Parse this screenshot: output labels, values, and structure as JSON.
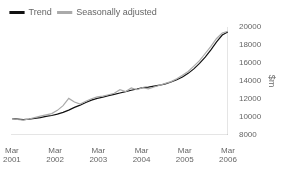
{
  "chart_data": {
    "type": "line",
    "ylabel": "$m",
    "x": [
      0,
      0.5263157894736842,
      1.0526315789473684,
      1.5789473684210527,
      2.1052631578947367,
      2.631578947368421,
      3.1578947368421053,
      3.6842105263157894,
      4.2105263157894735,
      4.7368421052631575,
      5.263157894736842,
      5.789473684210526,
      6.315789473684211,
      6.842105263157895,
      7.368421052631579,
      7.894736842105263,
      8.421052631578947,
      8.947368421052632,
      9.473684210526315,
      10,
      10.526315789473685,
      11.052631578947368,
      11.578947368421053,
      12.105263157894736,
      12.631578947368421,
      13.157894736842104,
      13.68421052631579,
      14.210526315789474,
      14.736842105263158,
      15.263157894736842,
      15.789473684210526,
      16.31578947368421,
      16.842105263157894,
      17.36842105263158,
      17.894736842105264,
      18.42105263157895,
      18.94736842105263,
      19.473684210526315,
      20
    ],
    "xlim": [
      0,
      20
    ],
    "xticks": [
      {
        "value": 0,
        "label": "Mar\n2001"
      },
      {
        "value": 4,
        "label": "Mar\n2002"
      },
      {
        "value": 8,
        "label": "Mar\n2003"
      },
      {
        "value": 12,
        "label": "Mar\n2004"
      },
      {
        "value": 16,
        "label": "Mar\n2005"
      },
      {
        "value": 20,
        "label": "Mar\n2006"
      }
    ],
    "ylim": [
      8000,
      20000
    ],
    "yticks": [
      8000,
      10000,
      12000,
      14000,
      16000,
      18000,
      20000
    ],
    "grid": false,
    "legend": "upper left",
    "series": [
      {
        "name": "Seasonally adjusted",
        "color": "#aaaaaa",
        "values": [
          9800,
          9700,
          9640,
          9760,
          9920,
          10070,
          10210,
          10360,
          10720,
          11250,
          12050,
          11650,
          11420,
          11730,
          12020,
          12220,
          12310,
          12460,
          12620,
          13020,
          12820,
          13220,
          13020,
          13240,
          13120,
          13320,
          13520,
          13720,
          13920,
          14230,
          14640,
          15050,
          15640,
          16250,
          17050,
          17850,
          18720,
          19330,
          19530
        ]
      },
      {
        "name": "Trend",
        "color": "#111111",
        "values": [
          9800,
          9750,
          9700,
          9750,
          9820,
          9920,
          10050,
          10150,
          10300,
          10500,
          10750,
          11050,
          11300,
          11600,
          11860,
          12060,
          12200,
          12360,
          12500,
          12650,
          12810,
          12960,
          13100,
          13260,
          13310,
          13420,
          13520,
          13670,
          13880,
          14120,
          14430,
          14840,
          15340,
          15950,
          16650,
          17450,
          18350,
          19100,
          19450
        ]
      }
    ]
  }
}
